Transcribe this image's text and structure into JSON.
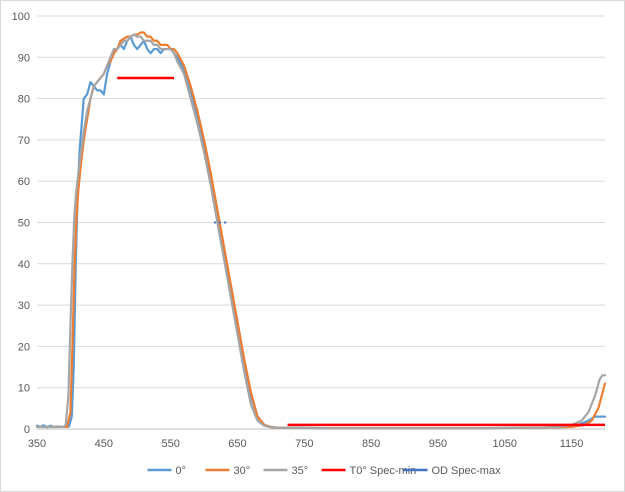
{
  "chart_data": {
    "type": "line",
    "title": "",
    "xlabel": "",
    "ylabel": "",
    "xlim": [
      350,
      1200
    ],
    "ylim": [
      0,
      100
    ],
    "x_ticks": [
      350,
      450,
      550,
      650,
      750,
      850,
      950,
      1050,
      1150
    ],
    "y_ticks": [
      0,
      10,
      20,
      30,
      40,
      50,
      60,
      70,
      80,
      90,
      100
    ],
    "grid": "horizontal",
    "legend": "bottom",
    "series": [
      {
        "name": "0°",
        "color": "#5b9bd5",
        "points": [
          [
            350,
            0.8
          ],
          [
            355,
            0.5
          ],
          [
            360,
            0.9
          ],
          [
            365,
            0.4
          ],
          [
            370,
            0.8
          ],
          [
            375,
            0.5
          ],
          [
            380,
            0.6
          ],
          [
            390,
            0.5
          ],
          [
            398,
            0.6
          ],
          [
            402,
            3
          ],
          [
            405,
            15
          ],
          [
            408,
            40
          ],
          [
            411,
            58
          ],
          [
            414,
            68
          ],
          [
            417,
            74
          ],
          [
            420,
            80
          ],
          [
            425,
            81
          ],
          [
            430,
            84
          ],
          [
            435,
            83
          ],
          [
            440,
            82
          ],
          [
            445,
            82
          ],
          [
            450,
            81
          ],
          [
            455,
            86
          ],
          [
            460,
            89
          ],
          [
            465,
            91
          ],
          [
            470,
            92
          ],
          [
            475,
            93
          ],
          [
            480,
            92
          ],
          [
            485,
            94
          ],
          [
            490,
            95
          ],
          [
            495,
            93
          ],
          [
            500,
            92
          ],
          [
            505,
            93
          ],
          [
            510,
            94
          ],
          [
            515,
            92
          ],
          [
            520,
            91
          ],
          [
            525,
            92
          ],
          [
            530,
            92
          ],
          [
            535,
            91
          ],
          [
            540,
            92
          ],
          [
            545,
            92
          ],
          [
            550,
            92
          ],
          [
            555,
            91
          ],
          [
            560,
            90
          ],
          [
            570,
            87
          ],
          [
            580,
            82
          ],
          [
            590,
            76
          ],
          [
            600,
            69
          ],
          [
            610,
            61
          ],
          [
            620,
            52
          ],
          [
            630,
            43
          ],
          [
            640,
            34
          ],
          [
            650,
            25
          ],
          [
            660,
            16
          ],
          [
            670,
            8
          ],
          [
            680,
            3
          ],
          [
            690,
            1
          ],
          [
            700,
            0.5
          ],
          [
            710,
            0.3
          ],
          [
            800,
            0.2
          ],
          [
            900,
            0.2
          ],
          [
            1000,
            0.2
          ],
          [
            1100,
            0.3
          ],
          [
            1140,
            0.5
          ],
          [
            1160,
            1
          ],
          [
            1175,
            2
          ],
          [
            1185,
            3
          ],
          [
            1200,
            3
          ]
        ]
      },
      {
        "name": "30°",
        "color": "#ed7d31",
        "points": [
          [
            350,
            0.5
          ],
          [
            360,
            0.5
          ],
          [
            370,
            0.5
          ],
          [
            380,
            0.5
          ],
          [
            390,
            0.5
          ],
          [
            395,
            0.5
          ],
          [
            400,
            4
          ],
          [
            403,
            20
          ],
          [
            406,
            38
          ],
          [
            409,
            51
          ],
          [
            412,
            58
          ],
          [
            415,
            63
          ],
          [
            420,
            70
          ],
          [
            425,
            75
          ],
          [
            430,
            80
          ],
          [
            435,
            83
          ],
          [
            440,
            84
          ],
          [
            445,
            85
          ],
          [
            450,
            86
          ],
          [
            455,
            88
          ],
          [
            460,
            89
          ],
          [
            465,
            91
          ],
          [
            470,
            92
          ],
          [
            475,
            94
          ],
          [
            480,
            94.5
          ],
          [
            485,
            95
          ],
          [
            490,
            95
          ],
          [
            495,
            95.5
          ],
          [
            500,
            95.5
          ],
          [
            505,
            96
          ],
          [
            510,
            96
          ],
          [
            515,
            95
          ],
          [
            520,
            95
          ],
          [
            525,
            94
          ],
          [
            530,
            94
          ],
          [
            535,
            93
          ],
          [
            540,
            93
          ],
          [
            545,
            93
          ],
          [
            550,
            92
          ],
          [
            555,
            92
          ],
          [
            560,
            91
          ],
          [
            570,
            88
          ],
          [
            580,
            83
          ],
          [
            590,
            77
          ],
          [
            600,
            70
          ],
          [
            610,
            62
          ],
          [
            620,
            53
          ],
          [
            630,
            44
          ],
          [
            640,
            35
          ],
          [
            650,
            26
          ],
          [
            660,
            17
          ],
          [
            670,
            9
          ],
          [
            680,
            3
          ],
          [
            690,
            1
          ],
          [
            700,
            0.5
          ],
          [
            710,
            0.3
          ],
          [
            800,
            0.2
          ],
          [
            900,
            0.2
          ],
          [
            1000,
            0.2
          ],
          [
            1100,
            0.3
          ],
          [
            1150,
            0.5
          ],
          [
            1170,
            1
          ],
          [
            1180,
            2
          ],
          [
            1190,
            5
          ],
          [
            1200,
            11
          ]
        ]
      },
      {
        "name": "35°",
        "color": "#a5a5a5",
        "points": [
          [
            350,
            0.5
          ],
          [
            360,
            0.5
          ],
          [
            370,
            0.5
          ],
          [
            380,
            0.5
          ],
          [
            390,
            0.5
          ],
          [
            393,
            1
          ],
          [
            397,
            8
          ],
          [
            400,
            25
          ],
          [
            403,
            40
          ],
          [
            406,
            52
          ],
          [
            409,
            58
          ],
          [
            412,
            62
          ],
          [
            415,
            66
          ],
          [
            420,
            72
          ],
          [
            425,
            77
          ],
          [
            430,
            80
          ],
          [
            435,
            83
          ],
          [
            440,
            84
          ],
          [
            445,
            85
          ],
          [
            450,
            86
          ],
          [
            455,
            88
          ],
          [
            460,
            90
          ],
          [
            465,
            92
          ],
          [
            470,
            92
          ],
          [
            475,
            93
          ],
          [
            480,
            94
          ],
          [
            485,
            94
          ],
          [
            490,
            95
          ],
          [
            495,
            95.5
          ],
          [
            500,
            95
          ],
          [
            505,
            95
          ],
          [
            510,
            94
          ],
          [
            515,
            94
          ],
          [
            520,
            94
          ],
          [
            525,
            93
          ],
          [
            530,
            93
          ],
          [
            535,
            92
          ],
          [
            540,
            92
          ],
          [
            545,
            92
          ],
          [
            550,
            92
          ],
          [
            555,
            91
          ],
          [
            560,
            89
          ],
          [
            570,
            86
          ],
          [
            580,
            80
          ],
          [
            590,
            74
          ],
          [
            600,
            67
          ],
          [
            610,
            59
          ],
          [
            620,
            50
          ],
          [
            630,
            41
          ],
          [
            640,
            32
          ],
          [
            650,
            23
          ],
          [
            660,
            14
          ],
          [
            670,
            6
          ],
          [
            680,
            2
          ],
          [
            690,
            0.8
          ],
          [
            700,
            0.4
          ],
          [
            710,
            0.3
          ],
          [
            800,
            0.2
          ],
          [
            900,
            0.2
          ],
          [
            1000,
            0.2
          ],
          [
            1100,
            0.3
          ],
          [
            1130,
            0.5
          ],
          [
            1150,
            1
          ],
          [
            1165,
            2
          ],
          [
            1175,
            4
          ],
          [
            1185,
            8
          ],
          [
            1192,
            12
          ],
          [
            1196,
            13
          ],
          [
            1200,
            13
          ]
        ]
      },
      {
        "name": "T0°   Spec-min",
        "color": "#ff0000",
        "segments": [
          [
            [
              470,
              85
            ],
            [
              555,
              85
            ]
          ],
          [
            [
              725,
              1
            ],
            [
              1200,
              1
            ]
          ]
        ]
      },
      {
        "name": "OD Spec-max",
        "color": "#4472c4",
        "segments": [
          [
            [
              615,
              50
            ],
            [
              618,
              50
            ]
          ],
          [
            [
              622,
              50
            ],
            [
              625,
              50
            ]
          ],
          [
            [
              630,
              50
            ],
            [
              633,
              50
            ]
          ]
        ]
      }
    ]
  }
}
